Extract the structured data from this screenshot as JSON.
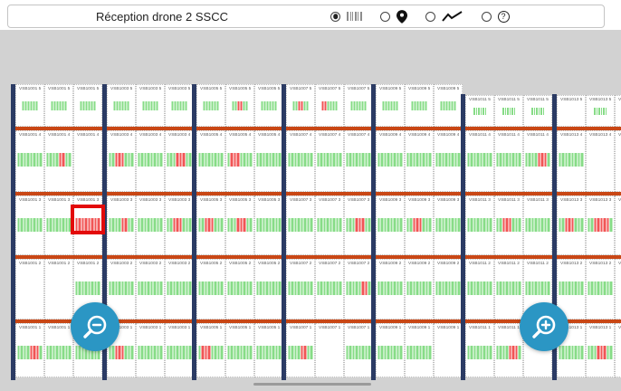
{
  "header": {
    "title": "Réception drone 2 SSCC",
    "modes": [
      {
        "name": "barcode-view",
        "selected": true
      },
      {
        "name": "location-view",
        "selected": false
      },
      {
        "name": "trend-view",
        "selected": false
      },
      {
        "name": "help-view",
        "selected": false,
        "glyph": "?"
      }
    ]
  },
  "zoom_controls": {
    "zoom_out": "zoom out (−)",
    "zoom_in": "zoom in (+)"
  },
  "colors": {
    "barcode_green": "#87DC87",
    "barcode_red": "#F15555",
    "aisle_navy": "#2B3B64",
    "row_orange": "#C94715",
    "selection_red": "#E30A0A",
    "button_teal": "#2B96C4",
    "page_gray": "#D2D2D2"
  },
  "grid": {
    "aisles": [
      "VSB1001",
      "VSB1003",
      "VSB1005",
      "VSB1007",
      "VSB1009",
      "VSB1011",
      "VSB1013"
    ],
    "levels": [
      "50",
      "40",
      "30",
      "20",
      "10"
    ],
    "columns": [
      "A",
      "B",
      "C"
    ],
    "rows": [
      {
        "level": "50",
        "cells": [
          {
            "label": "VSB1001 50A",
            "bars": "gggggg"
          },
          {
            "label": "VSB1001 50B",
            "bars": "gggggg"
          },
          {
            "label": "VSB1001 50C",
            "bars": "gggggg"
          },
          {
            "label": "VSB1003 50A",
            "bars": "gggggg"
          },
          {
            "label": "VSB1003 50B",
            "bars": "gggggg"
          },
          {
            "label": "VSB1003 50C",
            "bars": "gggggg"
          },
          {
            "label": "VSB1005 50A",
            "bars": "gggggg"
          },
          {
            "label": "VSB1005 50B",
            "bars": "ggrrgg"
          },
          {
            "label": "VSB1005 50C",
            "bars": "gggggg"
          },
          {
            "label": "VSB1007 50A",
            "bars": "ggrrgg"
          },
          {
            "label": "VSB1007 50B",
            "bars": "rrgggg"
          },
          {
            "label": "VSB1007 50C",
            "bars": "gggggg"
          },
          {
            "label": "VSB1009 50A",
            "bars": "gggggg"
          },
          {
            "label": "VSB1009 50B",
            "bars": "gggggg"
          },
          {
            "label": "VSB1009 50C",
            "bars": "gggggg"
          },
          {
            "label": "VSB1011 50A",
            "bars": "gggggg"
          },
          {
            "label": "VSB1011 50B",
            "bars": "gggggg"
          },
          {
            "label": "VSB1011 50C",
            "bars": "gggggg"
          },
          {
            "label": "VSB1013 50A",
            "bars": ""
          },
          {
            "label": "VSB1013 50B",
            "bars": "gggggg"
          },
          {
            "label": "VSB1013 50C",
            "bars": ""
          }
        ]
      },
      {
        "level": "40",
        "cells": [
          {
            "label": "VSB1001 40A",
            "bars": "gggggggg"
          },
          {
            "label": "VSB1001 40B",
            "bars": "ggggrrgg"
          },
          {
            "label": "VSB1001 40C",
            "bars": ""
          },
          {
            "label": "VSB1003 40A",
            "bars": "ggrrrggg"
          },
          {
            "label": "VSB1003 40B",
            "bars": "gggggggg"
          },
          {
            "label": "VSB1003 40C",
            "bars": "gggrrrgg"
          },
          {
            "label": "VSB1005 40A",
            "bars": "gggggggg"
          },
          {
            "label": "VSB1005 40B",
            "bars": "grrrgggg"
          },
          {
            "label": "VSB1005 40C",
            "bars": "gggggggg"
          },
          {
            "label": "VSB1007 40A",
            "bars": "gggggggg"
          },
          {
            "label": "VSB1007 40B",
            "bars": "gggggggg"
          },
          {
            "label": "VSB1007 40C",
            "bars": "gggggggg"
          },
          {
            "label": "VSB1009 40A",
            "bars": "gggggggg"
          },
          {
            "label": "VSB1009 40B",
            "bars": "gggggggg"
          },
          {
            "label": "VSB1009 40C",
            "bars": "gggggggg"
          },
          {
            "label": "VSB1011 40A",
            "bars": "gggggggg"
          },
          {
            "label": "VSB1011 40B",
            "bars": "gggggggg"
          },
          {
            "label": "VSB1011 40C",
            "bars": "ggggrrrg"
          },
          {
            "label": "VSB1013 40A",
            "bars": "gggggggg"
          },
          {
            "label": "VSB1013 40B",
            "bars": ""
          },
          {
            "label": "VSB1013 40C",
            "bars": ""
          }
        ]
      },
      {
        "level": "30",
        "cells": [
          {
            "label": "VSB1001 30A",
            "bars": "gggggggg"
          },
          {
            "label": "VSB1001 30B",
            "bars": "gggggggg"
          },
          {
            "label": "VSB1001 30C",
            "bars": "rrrrrrrr",
            "selected": true
          },
          {
            "label": "VSB1003 30A",
            "bars": "ggggrrgg"
          },
          {
            "label": "VSB1003 30B",
            "bars": "gggggggg"
          },
          {
            "label": "VSB1003 30C",
            "bars": "ggrrrggg"
          },
          {
            "label": "VSB1005 30A",
            "bars": "ggrrrggg"
          },
          {
            "label": "VSB1005 30B",
            "bars": "gggrrrgg"
          },
          {
            "label": "VSB1005 30C",
            "bars": "gggggggg"
          },
          {
            "label": "VSB1007 30A",
            "bars": "gggggggg"
          },
          {
            "label": "VSB1007 30B",
            "bars": "gggggggg"
          },
          {
            "label": "VSB1007 30C",
            "bars": "gggrrrgg"
          },
          {
            "label": "VSB1009 30A",
            "bars": "gggggggg"
          },
          {
            "label": "VSB1009 30B",
            "bars": "ggrrrggg"
          },
          {
            "label": "VSB1009 30C",
            "bars": "gggggggg"
          },
          {
            "label": "VSB1011 30A",
            "bars": "gggggggg"
          },
          {
            "label": "VSB1011 30B",
            "bars": "ggrrrggg"
          },
          {
            "label": "VSB1011 30C",
            "bars": "gggggggg"
          },
          {
            "label": "VSB1013 30A",
            "bars": "ggrrrggg"
          },
          {
            "label": "VSB1013 30B",
            "bars": "ggrrrrrg"
          },
          {
            "label": "VSB1013 30C",
            "bars": ""
          }
        ]
      },
      {
        "level": "20",
        "cells": [
          {
            "label": "VSB1001 20A",
            "bars": ""
          },
          {
            "label": "VSB1001 20B",
            "bars": ""
          },
          {
            "label": "VSB1001 20C",
            "bars": "gggggggg"
          },
          {
            "label": "VSB1003 20A",
            "bars": "gggggggg"
          },
          {
            "label": "VSB1003 20B",
            "bars": "gggggggg"
          },
          {
            "label": "VSB1003 20C",
            "bars": "gggggggg"
          },
          {
            "label": "VSB1005 20A",
            "bars": "gggggggg"
          },
          {
            "label": "VSB1005 20B",
            "bars": "gggggggg"
          },
          {
            "label": "VSB1005 20C",
            "bars": "gggggggg"
          },
          {
            "label": "VSB1007 20A",
            "bars": "gggggggg"
          },
          {
            "label": "VSB1007 20B",
            "bars": "gggggggg"
          },
          {
            "label": "VSB1007 20C",
            "bars": "gggggrrg"
          },
          {
            "label": "VSB1009 20A",
            "bars": "gggggggg"
          },
          {
            "label": "VSB1009 20B",
            "bars": "gggggggg"
          },
          {
            "label": "VSB1009 20C",
            "bars": "gggggggg"
          },
          {
            "label": "VSB1011 20A",
            "bars": "gggggggg"
          },
          {
            "label": "VSB1011 20B",
            "bars": "gggggggg"
          },
          {
            "label": "VSB1011 20C",
            "bars": "gggggggg"
          },
          {
            "label": "VSB1013 20A",
            "bars": "gggggggg"
          },
          {
            "label": "VSB1013 20B",
            "bars": "gggggggg"
          },
          {
            "label": "VSB1013 20C",
            "bars": ""
          }
        ]
      },
      {
        "level": "10",
        "cells": [
          {
            "label": "VSB1001 10A",
            "bars": "ggggrrrg"
          },
          {
            "label": "VSB1001 10B",
            "bars": "gggggggg"
          },
          {
            "label": "VSB1001 10C",
            "bars": "gggggggg"
          },
          {
            "label": "VSB1003 10A",
            "bars": "ggrrrggg"
          },
          {
            "label": "VSB1003 10B",
            "bars": "gggggggg"
          },
          {
            "label": "VSB1003 10C",
            "bars": "gggggggg"
          },
          {
            "label": "VSB1005 10A",
            "bars": "grrrgggg"
          },
          {
            "label": "VSB1005 10B",
            "bars": "gggggggg"
          },
          {
            "label": "VSB1005 10C",
            "bars": "gggggggg"
          },
          {
            "label": "VSB1007 10A",
            "bars": "ggggrrgg"
          },
          {
            "label": "VSB1007 10B",
            "bars": ""
          },
          {
            "label": "VSB1007 10C",
            "bars": "gggggggg"
          },
          {
            "label": "VSB1009 10A",
            "bars": "gggggggg"
          },
          {
            "label": "VSB1009 10B",
            "bars": "gggggggg"
          },
          {
            "label": "VSB1009 10C",
            "bars": ""
          },
          {
            "label": "VSB1011 10A",
            "bars": "gggggggg"
          },
          {
            "label": "VSB1011 10B",
            "bars": "ggggrrrg"
          },
          {
            "label": "VSB1011 10C",
            "bars": ""
          },
          {
            "label": "VSB1013 10A",
            "bars": "gggggggg"
          },
          {
            "label": "VSB1013 10B",
            "bars": "gggrrrgg"
          },
          {
            "label": "VSB1013 10C",
            "bars": ""
          }
        ]
      }
    ]
  }
}
